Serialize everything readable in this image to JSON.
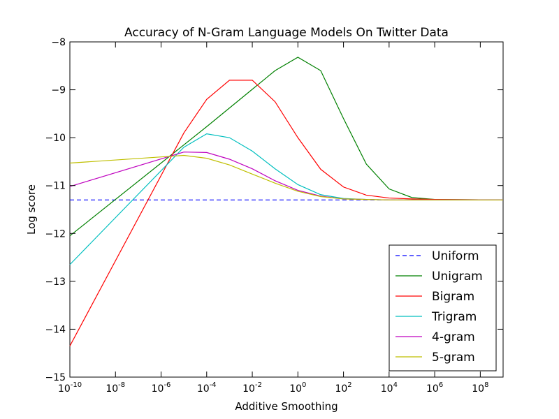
{
  "chart_data": {
    "type": "line",
    "title": "Accuracy of N-Gram Language Models On Twitter Data",
    "xlabel": "Additive Smoothing",
    "ylabel": "Log score",
    "xscale": "log",
    "xlim_exponent": [
      -10,
      9
    ],
    "ylim": [
      -15,
      -8
    ],
    "y_ticks": [
      "−15",
      "−14",
      "−13",
      "−12",
      "−11",
      "−10",
      "−9",
      "−8"
    ],
    "x_ticks": [
      {
        "base": "10",
        "exp": "-10"
      },
      {
        "base": "10",
        "exp": "-8"
      },
      {
        "base": "10",
        "exp": "-6"
      },
      {
        "base": "10",
        "exp": "-4"
      },
      {
        "base": "10",
        "exp": "-2"
      },
      {
        "base": "10",
        "exp": "0"
      },
      {
        "base": "10",
        "exp": "2"
      },
      {
        "base": "10",
        "exp": "4"
      },
      {
        "base": "10",
        "exp": "6"
      },
      {
        "base": "10",
        "exp": "8"
      }
    ],
    "x_exponents": [
      -10,
      -5,
      -4,
      -3,
      -2,
      -1,
      0,
      1,
      2,
      3,
      4,
      5,
      6,
      9
    ],
    "grid": false,
    "legend_position": "bottom-right",
    "series": [
      {
        "name": "Uniform",
        "color": "#0000ff",
        "dash": true,
        "values": [
          -11.3,
          -11.3,
          -11.3,
          -11.3,
          -11.3,
          -11.3,
          -11.3,
          -11.3,
          -11.3,
          -11.3,
          -11.3,
          -11.3,
          -11.3,
          -11.3
        ]
      },
      {
        "name": "Unigram",
        "color": "#008000",
        "dash": false,
        "values": [
          -12.05,
          -10.15,
          -9.77,
          -9.38,
          -8.99,
          -8.6,
          -8.32,
          -8.6,
          -9.6,
          -10.55,
          -11.07,
          -11.25,
          -11.29,
          -11.3
        ]
      },
      {
        "name": "Bigram",
        "color": "#ff0000",
        "dash": false,
        "values": [
          -14.35,
          -9.9,
          -9.2,
          -8.8,
          -8.8,
          -9.25,
          -10.0,
          -10.66,
          -11.03,
          -11.2,
          -11.26,
          -11.28,
          -11.29,
          -11.3
        ]
      },
      {
        "name": "Trigram",
        "color": "#00bfbf",
        "dash": false,
        "values": [
          -12.65,
          -10.2,
          -9.92,
          -10.0,
          -10.28,
          -10.65,
          -10.98,
          -11.19,
          -11.27,
          -11.29,
          -11.3,
          -11.3,
          -11.3,
          -11.3
        ]
      },
      {
        "name": "4-gram",
        "color": "#bf00bf",
        "dash": false,
        "values": [
          -11.02,
          -10.3,
          -10.31,
          -10.45,
          -10.65,
          -10.9,
          -11.1,
          -11.22,
          -11.28,
          -11.29,
          -11.3,
          -11.3,
          -11.3,
          -11.3
        ]
      },
      {
        "name": "5-gram",
        "color": "#bfbf00",
        "dash": false,
        "values": [
          -10.53,
          -10.37,
          -10.43,
          -10.57,
          -10.76,
          -10.95,
          -11.12,
          -11.23,
          -11.28,
          -11.29,
          -11.3,
          -11.3,
          -11.3,
          -11.3
        ]
      }
    ]
  }
}
